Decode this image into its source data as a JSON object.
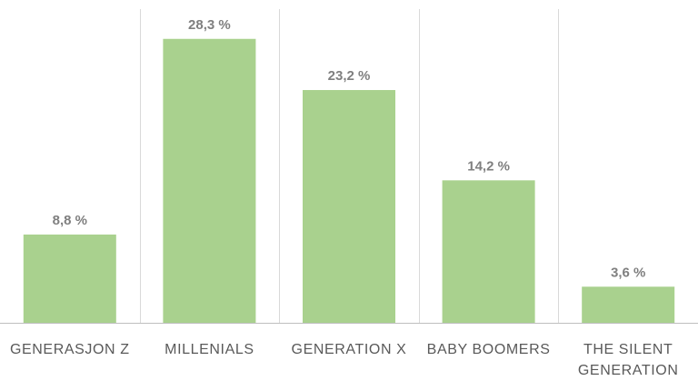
{
  "chart_data": {
    "type": "bar",
    "categories": [
      [
        "GENERASJON Z"
      ],
      [
        "MILLENIALS"
      ],
      [
        "GENERATION X"
      ],
      [
        "BABY BOOMERS"
      ],
      [
        "THE SILENT",
        "GENERATION"
      ]
    ],
    "values": [
      8.8,
      28.3,
      23.2,
      14.2,
      3.6
    ],
    "data_labels": [
      "8,8 %",
      "28,3 %",
      "23,2 %",
      "14,2 %",
      "3,6 %"
    ],
    "title": "",
    "xlabel": "",
    "ylabel": "",
    "ylim": [
      0,
      30
    ],
    "grid": "vertical separators between categories",
    "legend": "none",
    "colors": {
      "bar": "#a9d18e",
      "separator": "#d9d9d9",
      "axis": "#bfbfbf",
      "value_label": "#7f7f7f",
      "category_label": "#595959"
    }
  }
}
